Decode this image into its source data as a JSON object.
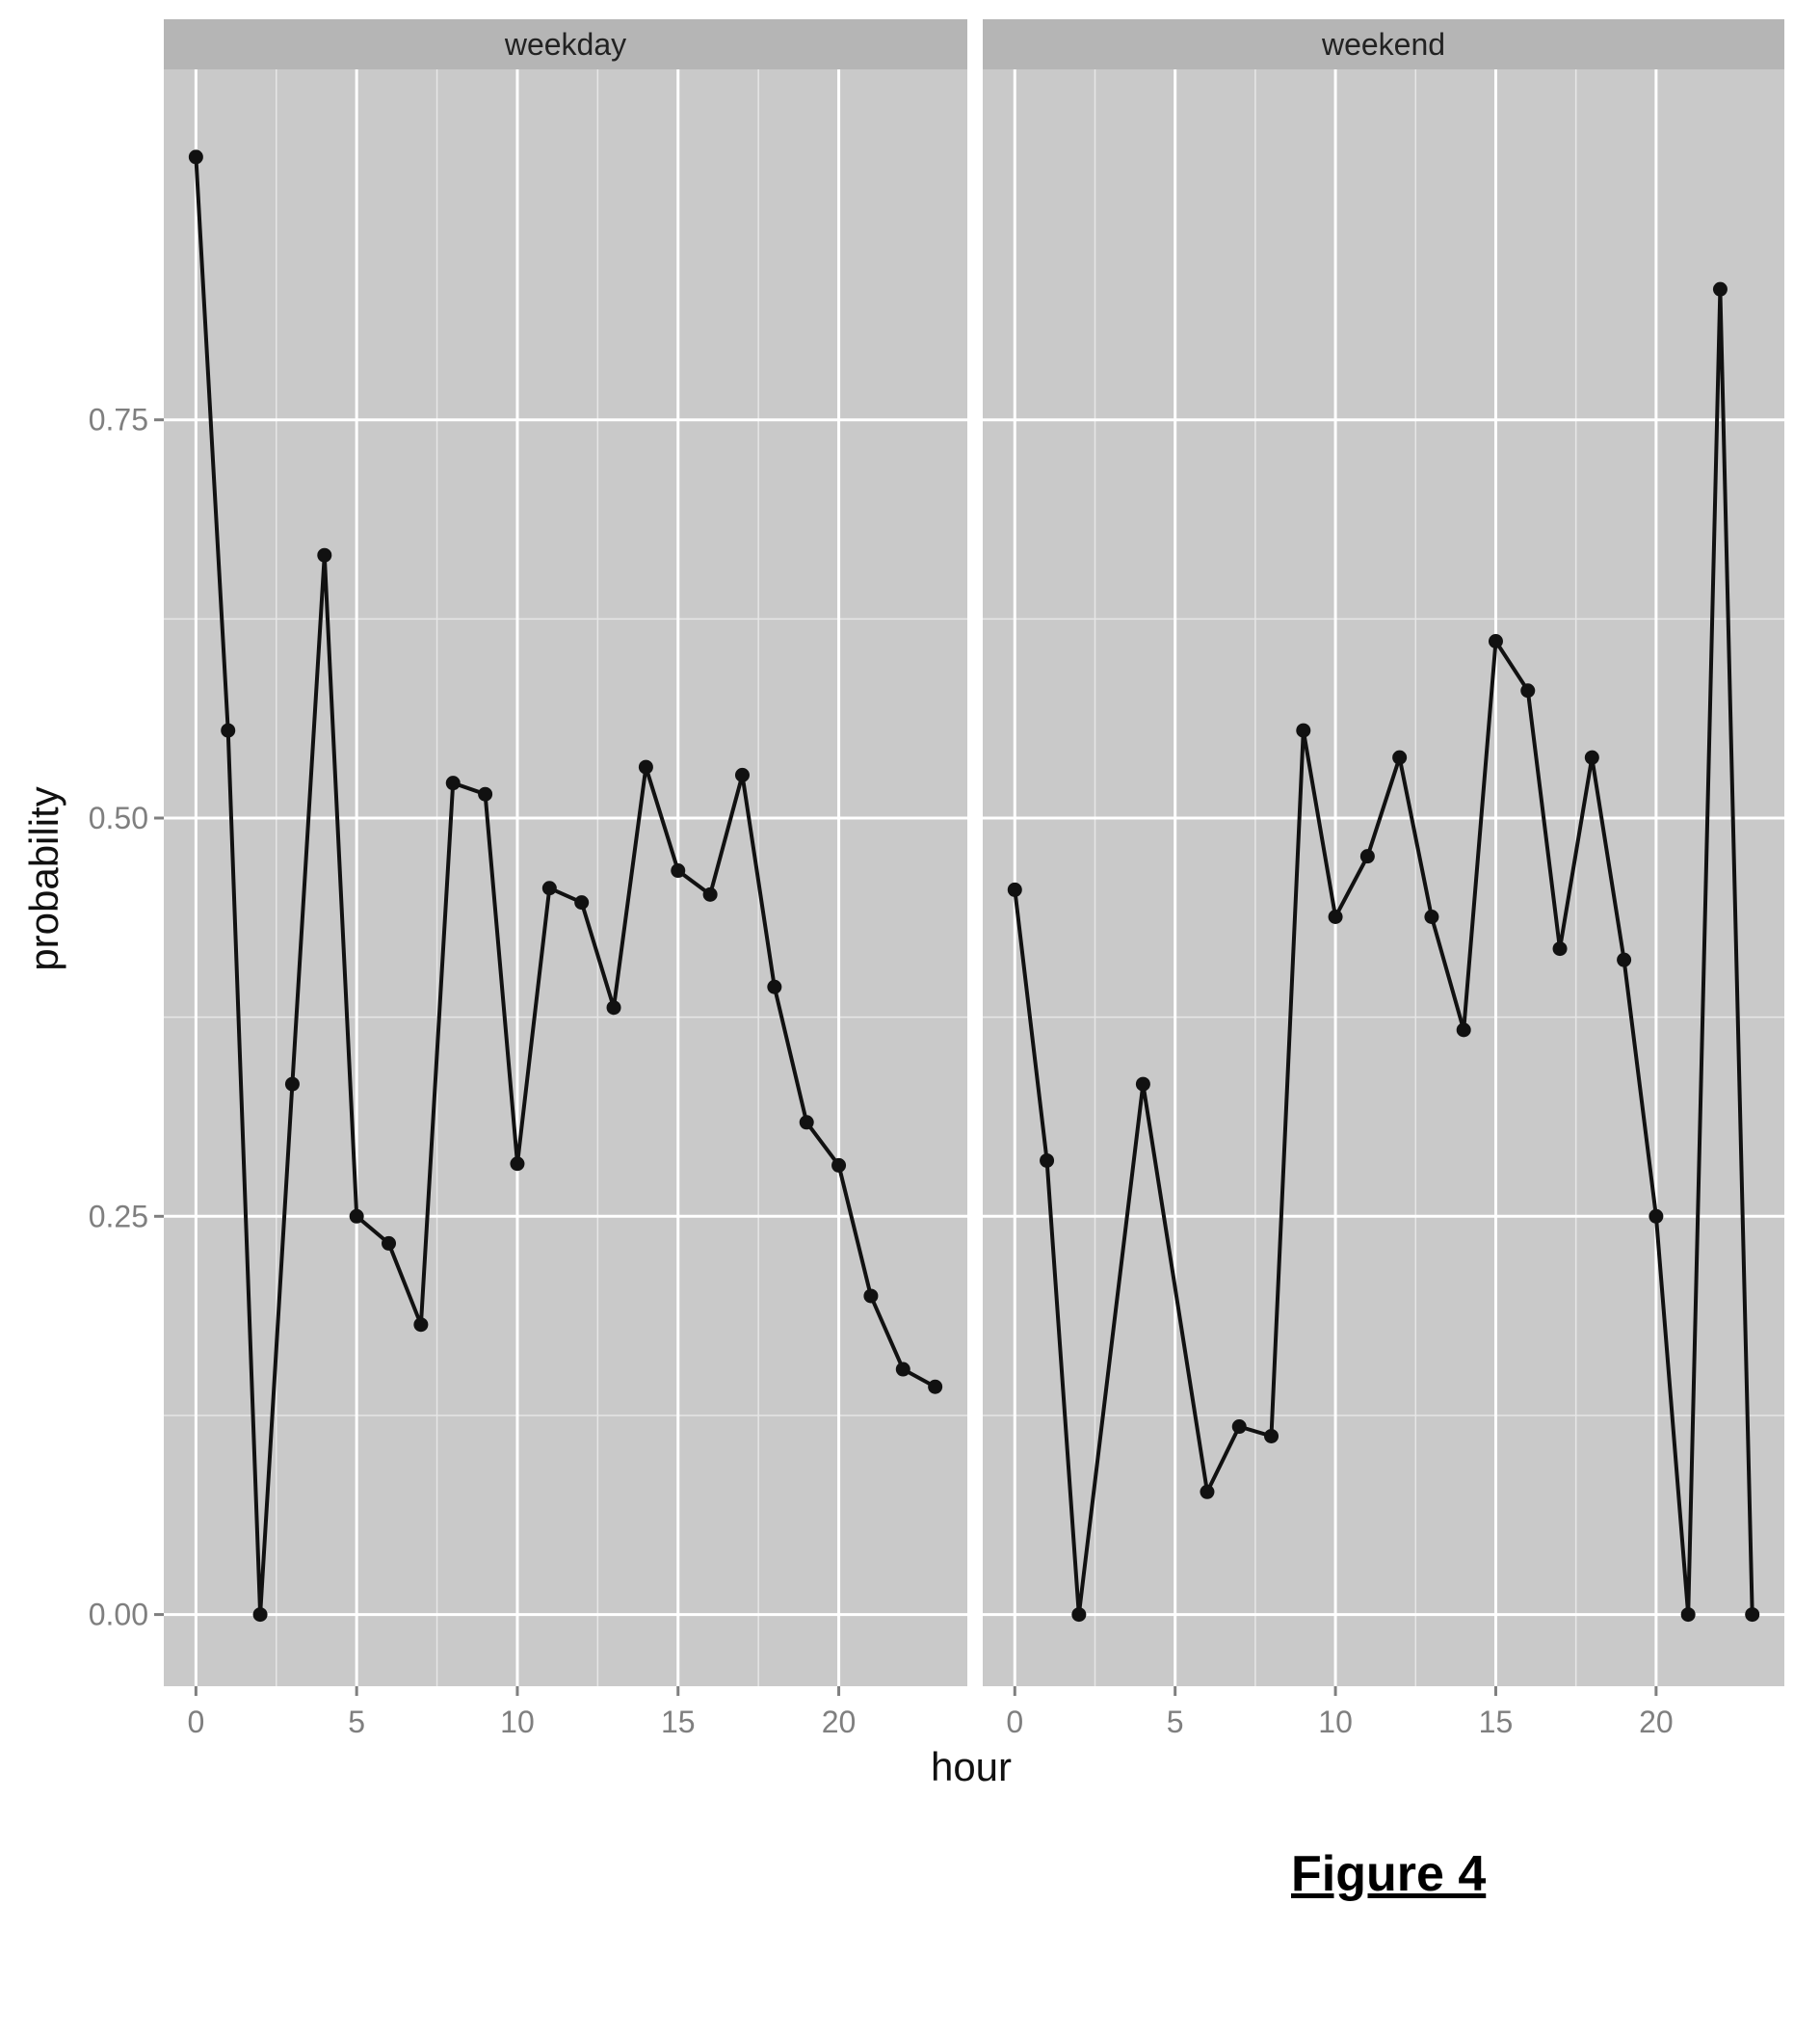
{
  "figure": {
    "caption": "Figure 4"
  },
  "chart_data": {
    "type": "line",
    "xlabel": "hour",
    "ylabel": "probability",
    "xlim": [
      -1,
      24
    ],
    "ylim": [
      -0.045,
      0.97
    ],
    "x_ticks": [
      0,
      5,
      10,
      15,
      20
    ],
    "y_ticks": [
      0.0,
      0.25,
      0.5,
      0.75
    ],
    "y_tick_labels": [
      "0.00",
      "0.25",
      "0.50",
      "0.75"
    ],
    "grid": true,
    "colors": {
      "panel_background": "#c9c9c9",
      "strip_background": "#b5b5b5",
      "grid": "#ffffff",
      "line": "#111111"
    },
    "facets": [
      {
        "name": "weekday",
        "x": [
          0,
          1,
          2,
          3,
          4,
          5,
          6,
          7,
          8,
          9,
          10,
          11,
          12,
          13,
          14,
          15,
          16,
          17,
          18,
          19,
          20,
          21,
          22,
          23
        ],
        "values": [
          0.915,
          0.555,
          0.0,
          0.333,
          0.665,
          0.25,
          0.233,
          0.182,
          0.522,
          0.515,
          0.283,
          0.456,
          0.447,
          0.381,
          0.532,
          0.467,
          0.452,
          0.527,
          0.394,
          0.309,
          0.282,
          0.2,
          0.154,
          0.143
        ]
      },
      {
        "name": "weekend",
        "x": [
          0,
          1,
          2,
          4,
          6,
          7,
          8,
          9,
          10,
          11,
          12,
          13,
          14,
          15,
          16,
          17,
          18,
          19,
          20,
          21,
          22,
          23
        ],
        "values": [
          0.455,
          0.285,
          0.0,
          0.333,
          0.077,
          0.118,
          0.112,
          0.555,
          0.438,
          0.476,
          0.538,
          0.438,
          0.367,
          0.611,
          0.58,
          0.418,
          0.538,
          0.411,
          0.25,
          0.0,
          0.832,
          0.0
        ]
      }
    ]
  }
}
